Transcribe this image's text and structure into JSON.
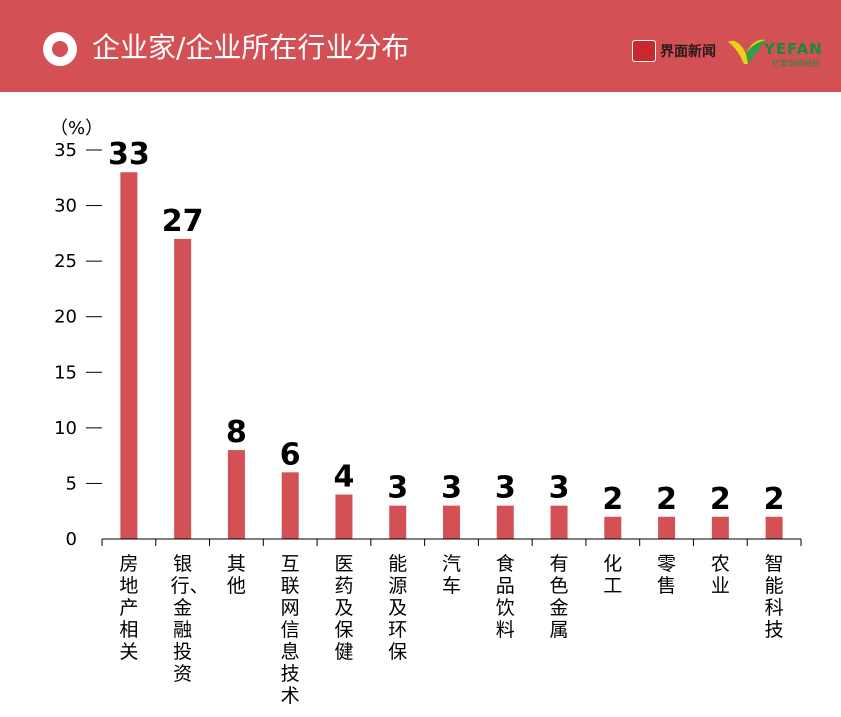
{
  "header": {
    "title": "企业家/企业所在行业分布",
    "logo_text": "界面新闻",
    "logo2_text": "YEFAN",
    "logo2_sub": "亿安保险经纪",
    "accent_color": "#d35055"
  },
  "chart_data": {
    "type": "bar",
    "ylabel": "（%）",
    "ylim": [
      0,
      35
    ],
    "yticks": [
      0,
      5,
      10,
      15,
      20,
      25,
      30,
      35
    ],
    "categories": [
      "房地产相关",
      "银行、金融投资",
      "其他",
      "互联网信息技术",
      "医药及保健",
      "能源及环保",
      "汽车",
      "食品饮料",
      "有色金属",
      "化工",
      "零售",
      "农业",
      "智能科技"
    ],
    "values": [
      33,
      27,
      8,
      6,
      4,
      3,
      3,
      3,
      3,
      2,
      2,
      2,
      2
    ],
    "bar_color": "#d35055",
    "grid": false,
    "legend": "none"
  }
}
